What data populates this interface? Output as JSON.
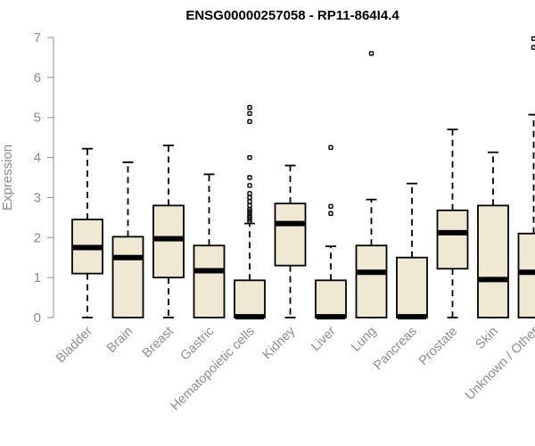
{
  "chart_data": {
    "type": "boxplot",
    "title": "ENSG00000257058 - RP11-864I4.4",
    "ylabel": "Expression",
    "xlabel": "",
    "ylim": [
      0,
      7
    ],
    "yticks": [
      0,
      1,
      2,
      3,
      4,
      5,
      6,
      7
    ],
    "grid": false,
    "colors": {
      "box_fill": "#efe8d2",
      "stroke": "#000000",
      "axis": "#8c8c8c"
    },
    "categories": [
      "Bladder",
      "Brain",
      "Breast",
      "Gastric",
      "Hematopoietic cells",
      "Kidney",
      "Liver",
      "Lung",
      "Pancreas",
      "Prostate",
      "Skin",
      "Unknown / Other"
    ],
    "boxes": [
      {
        "category": "Bladder",
        "whisker_low": 0,
        "q1": 1.1,
        "median": 1.75,
        "q3": 2.45,
        "whisker_high": 4.22,
        "outliers": []
      },
      {
        "category": "Brain",
        "whisker_low": 0,
        "q1": 0,
        "median": 1.5,
        "q3": 2.02,
        "whisker_high": 3.88,
        "outliers": []
      },
      {
        "category": "Breast",
        "whisker_low": 0,
        "q1": 1.0,
        "median": 1.97,
        "q3": 2.8,
        "whisker_high": 4.3,
        "outliers": []
      },
      {
        "category": "Gastric",
        "whisker_low": 0,
        "q1": 0,
        "median": 1.17,
        "q3": 1.8,
        "whisker_high": 3.58,
        "outliers": []
      },
      {
        "category": "Hematopoietic cells",
        "whisker_low": 0,
        "q1": 0,
        "median": 0.02,
        "q3": 0.93,
        "whisker_high": 2.35,
        "outliers": [
          2.4,
          2.45,
          2.5,
          2.55,
          2.6,
          2.65,
          2.7,
          2.8,
          2.9,
          3.0,
          3.1,
          3.3,
          3.5,
          4.0,
          4.9,
          5.1,
          5.25
        ]
      },
      {
        "category": "Kidney",
        "whisker_low": 0,
        "q1": 1.3,
        "median": 2.35,
        "q3": 2.85,
        "whisker_high": 3.8,
        "outliers": []
      },
      {
        "category": "Liver",
        "whisker_low": 0,
        "q1": 0,
        "median": 0.02,
        "q3": 0.93,
        "whisker_high": 1.78,
        "outliers": [
          2.6,
          2.78,
          4.25
        ]
      },
      {
        "category": "Lung",
        "whisker_low": 0,
        "q1": 0,
        "median": 1.13,
        "q3": 1.8,
        "whisker_high": 2.95,
        "outliers": [
          6.6
        ]
      },
      {
        "category": "Pancreas",
        "whisker_low": 0,
        "q1": 0,
        "median": 0.02,
        "q3": 1.5,
        "whisker_high": 3.35,
        "outliers": []
      },
      {
        "category": "Prostate",
        "whisker_low": 0,
        "q1": 1.22,
        "median": 2.12,
        "q3": 2.68,
        "whisker_high": 4.7,
        "outliers": []
      },
      {
        "category": "Skin",
        "whisker_low": 0,
        "q1": 0,
        "median": 0.95,
        "q3": 2.8,
        "whisker_high": 4.13,
        "outliers": []
      },
      {
        "category": "Unknown / Other",
        "whisker_low": 0,
        "q1": 0,
        "median": 1.13,
        "q3": 2.1,
        "whisker_high": 5.07,
        "outliers": [
          6.75,
          6.97
        ]
      }
    ]
  }
}
